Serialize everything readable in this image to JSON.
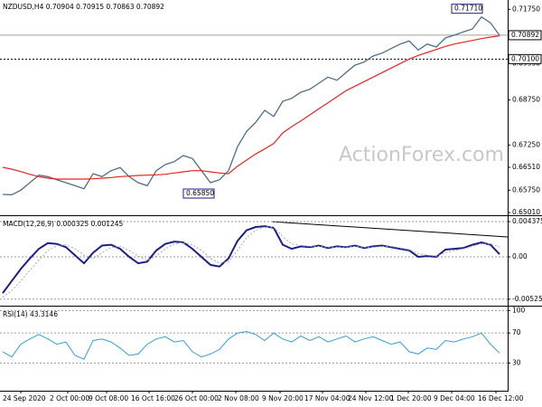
{
  "chart_data": [
    {
      "type": "line",
      "title": "NZDUSD,H4  0.70904 0.70915 0.70863 0.70892",
      "watermark": "ActionForex.com",
      "ylim": [
        0.6495,
        0.7206
      ],
      "yticks": [
        {
          "value": 0.7175,
          "label": "0.71750"
        },
        {
          "value": 0.6995,
          "label": "0.69950"
        },
        {
          "value": 0.6875,
          "label": "0.68750"
        },
        {
          "value": 0.6725,
          "label": "0.67250"
        },
        {
          "value": 0.6651,
          "label": "0.66510"
        },
        {
          "value": 0.6575,
          "label": "0.65750"
        },
        {
          "value": 0.6501,
          "label": "0.65010"
        }
      ],
      "levels": [
        {
          "value": 0.70892,
          "label": "0.70892",
          "color": "#a0a0a0"
        },
        {
          "value": 0.701,
          "label": "0.70100",
          "color": "#000000",
          "dashed": true
        }
      ],
      "annotations": [
        {
          "value": 0.7171,
          "label": "0.71710"
        },
        {
          "value": 0.6585,
          "label": "0.65850"
        }
      ],
      "series": [
        {
          "color": "#4a6f86",
          "width": 1.3,
          "values": [
            0.6561,
            0.656,
            0.6575,
            0.66,
            0.6625,
            0.662,
            0.661,
            0.66,
            0.659,
            0.658,
            0.663,
            0.662,
            0.664,
            0.665,
            0.662,
            0.66,
            0.659,
            0.664,
            0.666,
            0.667,
            0.669,
            0.668,
            0.664,
            0.66,
            0.661,
            0.664,
            0.672,
            0.677,
            0.68,
            0.684,
            0.682,
            0.687,
            0.688,
            0.69,
            0.691,
            0.693,
            0.695,
            0.694,
            0.6965,
            0.699,
            0.7,
            0.702,
            0.703,
            0.7045,
            0.706,
            0.707,
            0.704,
            0.706,
            0.705,
            0.708,
            0.709,
            0.71,
            0.711,
            0.715,
            0.713,
            0.7089
          ]
        },
        {
          "color": "#e8251f",
          "width": 1.2,
          "values": [
            0.6651,
            0.6645,
            0.6637,
            0.6628,
            0.662,
            0.6615,
            0.6612,
            0.6612,
            0.6612,
            0.6612,
            0.6613,
            0.6615,
            0.6617,
            0.662,
            0.6622,
            0.6624,
            0.6625,
            0.6626,
            0.6628,
            0.6632,
            0.6636,
            0.664,
            0.664,
            0.6636,
            0.6632,
            0.663,
            0.6655,
            0.6675,
            0.6695,
            0.6712,
            0.673,
            0.6765,
            0.6786,
            0.6805,
            0.6825,
            0.6845,
            0.6865,
            0.6885,
            0.6905,
            0.692,
            0.6935,
            0.695,
            0.6965,
            0.698,
            0.6995,
            0.701,
            0.7022,
            0.7032,
            0.7042,
            0.7052,
            0.706,
            0.7066,
            0.7072,
            0.7078,
            0.7083,
            0.7087
          ]
        }
      ]
    },
    {
      "type": "line",
      "title": "MACD(12,26,9) 0.000325 0.001245",
      "ylim": [
        -0.005947,
        0.004936
      ],
      "yticks": [
        0.004375,
        {
          "value": 0,
          "label": "0.00"
        },
        -0.005251
      ],
      "grid": true,
      "series": [
        {
          "color": "#1b1f8a",
          "width": 2,
          "values": [
            -0.0045,
            -0.003,
            -0.0015,
            -0.0002,
            0.001,
            0.0017,
            0.0016,
            0.0012,
            0.0002,
            -0.0008,
            0.0005,
            0.0014,
            0.0015,
            0.001,
            0.0,
            -0.0008,
            -0.0006,
            0.0008,
            0.0016,
            0.0019,
            0.0018,
            0.001,
            0.0,
            -0.001,
            -0.0012,
            -0.0002,
            0.002,
            0.0033,
            0.0037,
            0.0038,
            0.0036,
            0.0015,
            0.001,
            0.0013,
            0.0012,
            0.0014,
            0.0011,
            0.0013,
            0.0012,
            0.0014,
            0.0011,
            0.0013,
            0.0014,
            0.0012,
            0.001,
            0.0008,
            0.0,
            0.0001,
            0.0,
            0.0009,
            0.001,
            0.0011,
            0.0015,
            0.0018,
            0.0015,
            0.000325
          ]
        },
        {
          "color": "#a8a8a8",
          "width": 1,
          "dashed": true,
          "values": [
            -0.005,
            -0.0042,
            -0.003,
            -0.0017,
            -0.0004,
            0.0008,
            0.0014,
            0.0015,
            0.001,
            0.0002,
            -0.0002,
            0.0005,
            0.0012,
            0.0013,
            0.0008,
            0.0001,
            -0.0004,
            0.0001,
            0.001,
            0.0016,
            0.0018,
            0.0015,
            0.0008,
            -0.0002,
            -0.0008,
            -0.0006,
            0.0008,
            0.0024,
            0.0033,
            0.0037,
            0.0037,
            0.0025,
            0.0016,
            0.0014,
            0.0013,
            0.0013,
            0.0012,
            0.0012,
            0.0012,
            0.0013,
            0.0012,
            0.0012,
            0.0013,
            0.0013,
            0.0011,
            0.0009,
            0.0004,
            0.0002,
            0.0001,
            0.0005,
            0.0008,
            0.001,
            0.0013,
            0.0016,
            0.0016,
            0.001245
          ]
        }
      ]
    },
    {
      "type": "line",
      "title": "RSI(14) 43.3146",
      "ylim": [
        -7,
        104
      ],
      "yticks": [
        100,
        70,
        30
      ],
      "grid": true,
      "xtick_labels": [
        "24 Sep 2020",
        "2 Oct 00:00",
        "9 Oct 08:00",
        "16 Oct 16:00",
        "26 Oct 00:00",
        "2 Nov 08:00",
        "9 Nov 20:00",
        "17 Nov 04:00",
        "24 Nov 12:00",
        "1 Dec 20:00",
        "9 Dec 04:00",
        "16 Dec 12:00"
      ],
      "series": [
        {
          "color": "#2f9fdc",
          "width": 1,
          "values": [
            45,
            38,
            55,
            62,
            68,
            62,
            55,
            58,
            40,
            35,
            60,
            62,
            58,
            50,
            40,
            42,
            55,
            62,
            65,
            58,
            60,
            45,
            38,
            42,
            48,
            62,
            70,
            72,
            68,
            60,
            70,
            62,
            58,
            66,
            60,
            65,
            58,
            62,
            66,
            58,
            62,
            65,
            60,
            55,
            58,
            45,
            42,
            50,
            48,
            60,
            58,
            62,
            65,
            70,
            55,
            43.3146
          ]
        }
      ]
    }
  ]
}
